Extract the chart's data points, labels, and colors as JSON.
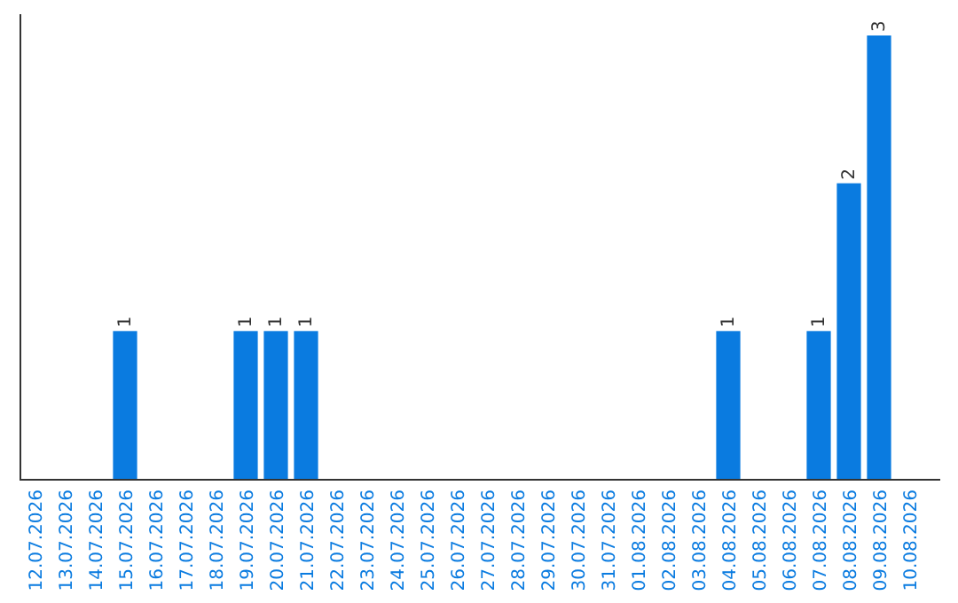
{
  "chart_data": {
    "type": "bar",
    "categories": [
      "12.07.2026",
      "13.07.2026",
      "14.07.2026",
      "15.07.2026",
      "16.07.2026",
      "17.07.2026",
      "18.07.2026",
      "19.07.2026",
      "20.07.2026",
      "21.07.2026",
      "22.07.2026",
      "23.07.2026",
      "24.07.2026",
      "25.07.2026",
      "26.07.2026",
      "27.07.2026",
      "28.07.2026",
      "29.07.2026",
      "30.07.2026",
      "31.07.2026",
      "01.08.2026",
      "02.08.2026",
      "03.08.2026",
      "04.08.2026",
      "05.08.2026",
      "06.08.2026",
      "07.08.2026",
      "08.08.2026",
      "09.08.2026",
      "10.08.2026"
    ],
    "values": [
      0,
      0,
      0,
      1,
      0,
      0,
      0,
      1,
      1,
      1,
      0,
      0,
      0,
      0,
      0,
      0,
      0,
      0,
      0,
      0,
      0,
      0,
      0,
      1,
      0,
      0,
      1,
      2,
      3,
      0
    ],
    "value_labels": [
      null,
      null,
      null,
      "1",
      null,
      null,
      null,
      "1",
      "1",
      "1",
      null,
      null,
      null,
      null,
      null,
      null,
      null,
      null,
      null,
      null,
      null,
      null,
      null,
      "1",
      null,
      null,
      "1",
      "2",
      "3",
      null
    ],
    "color": "#0a7be0"
  }
}
